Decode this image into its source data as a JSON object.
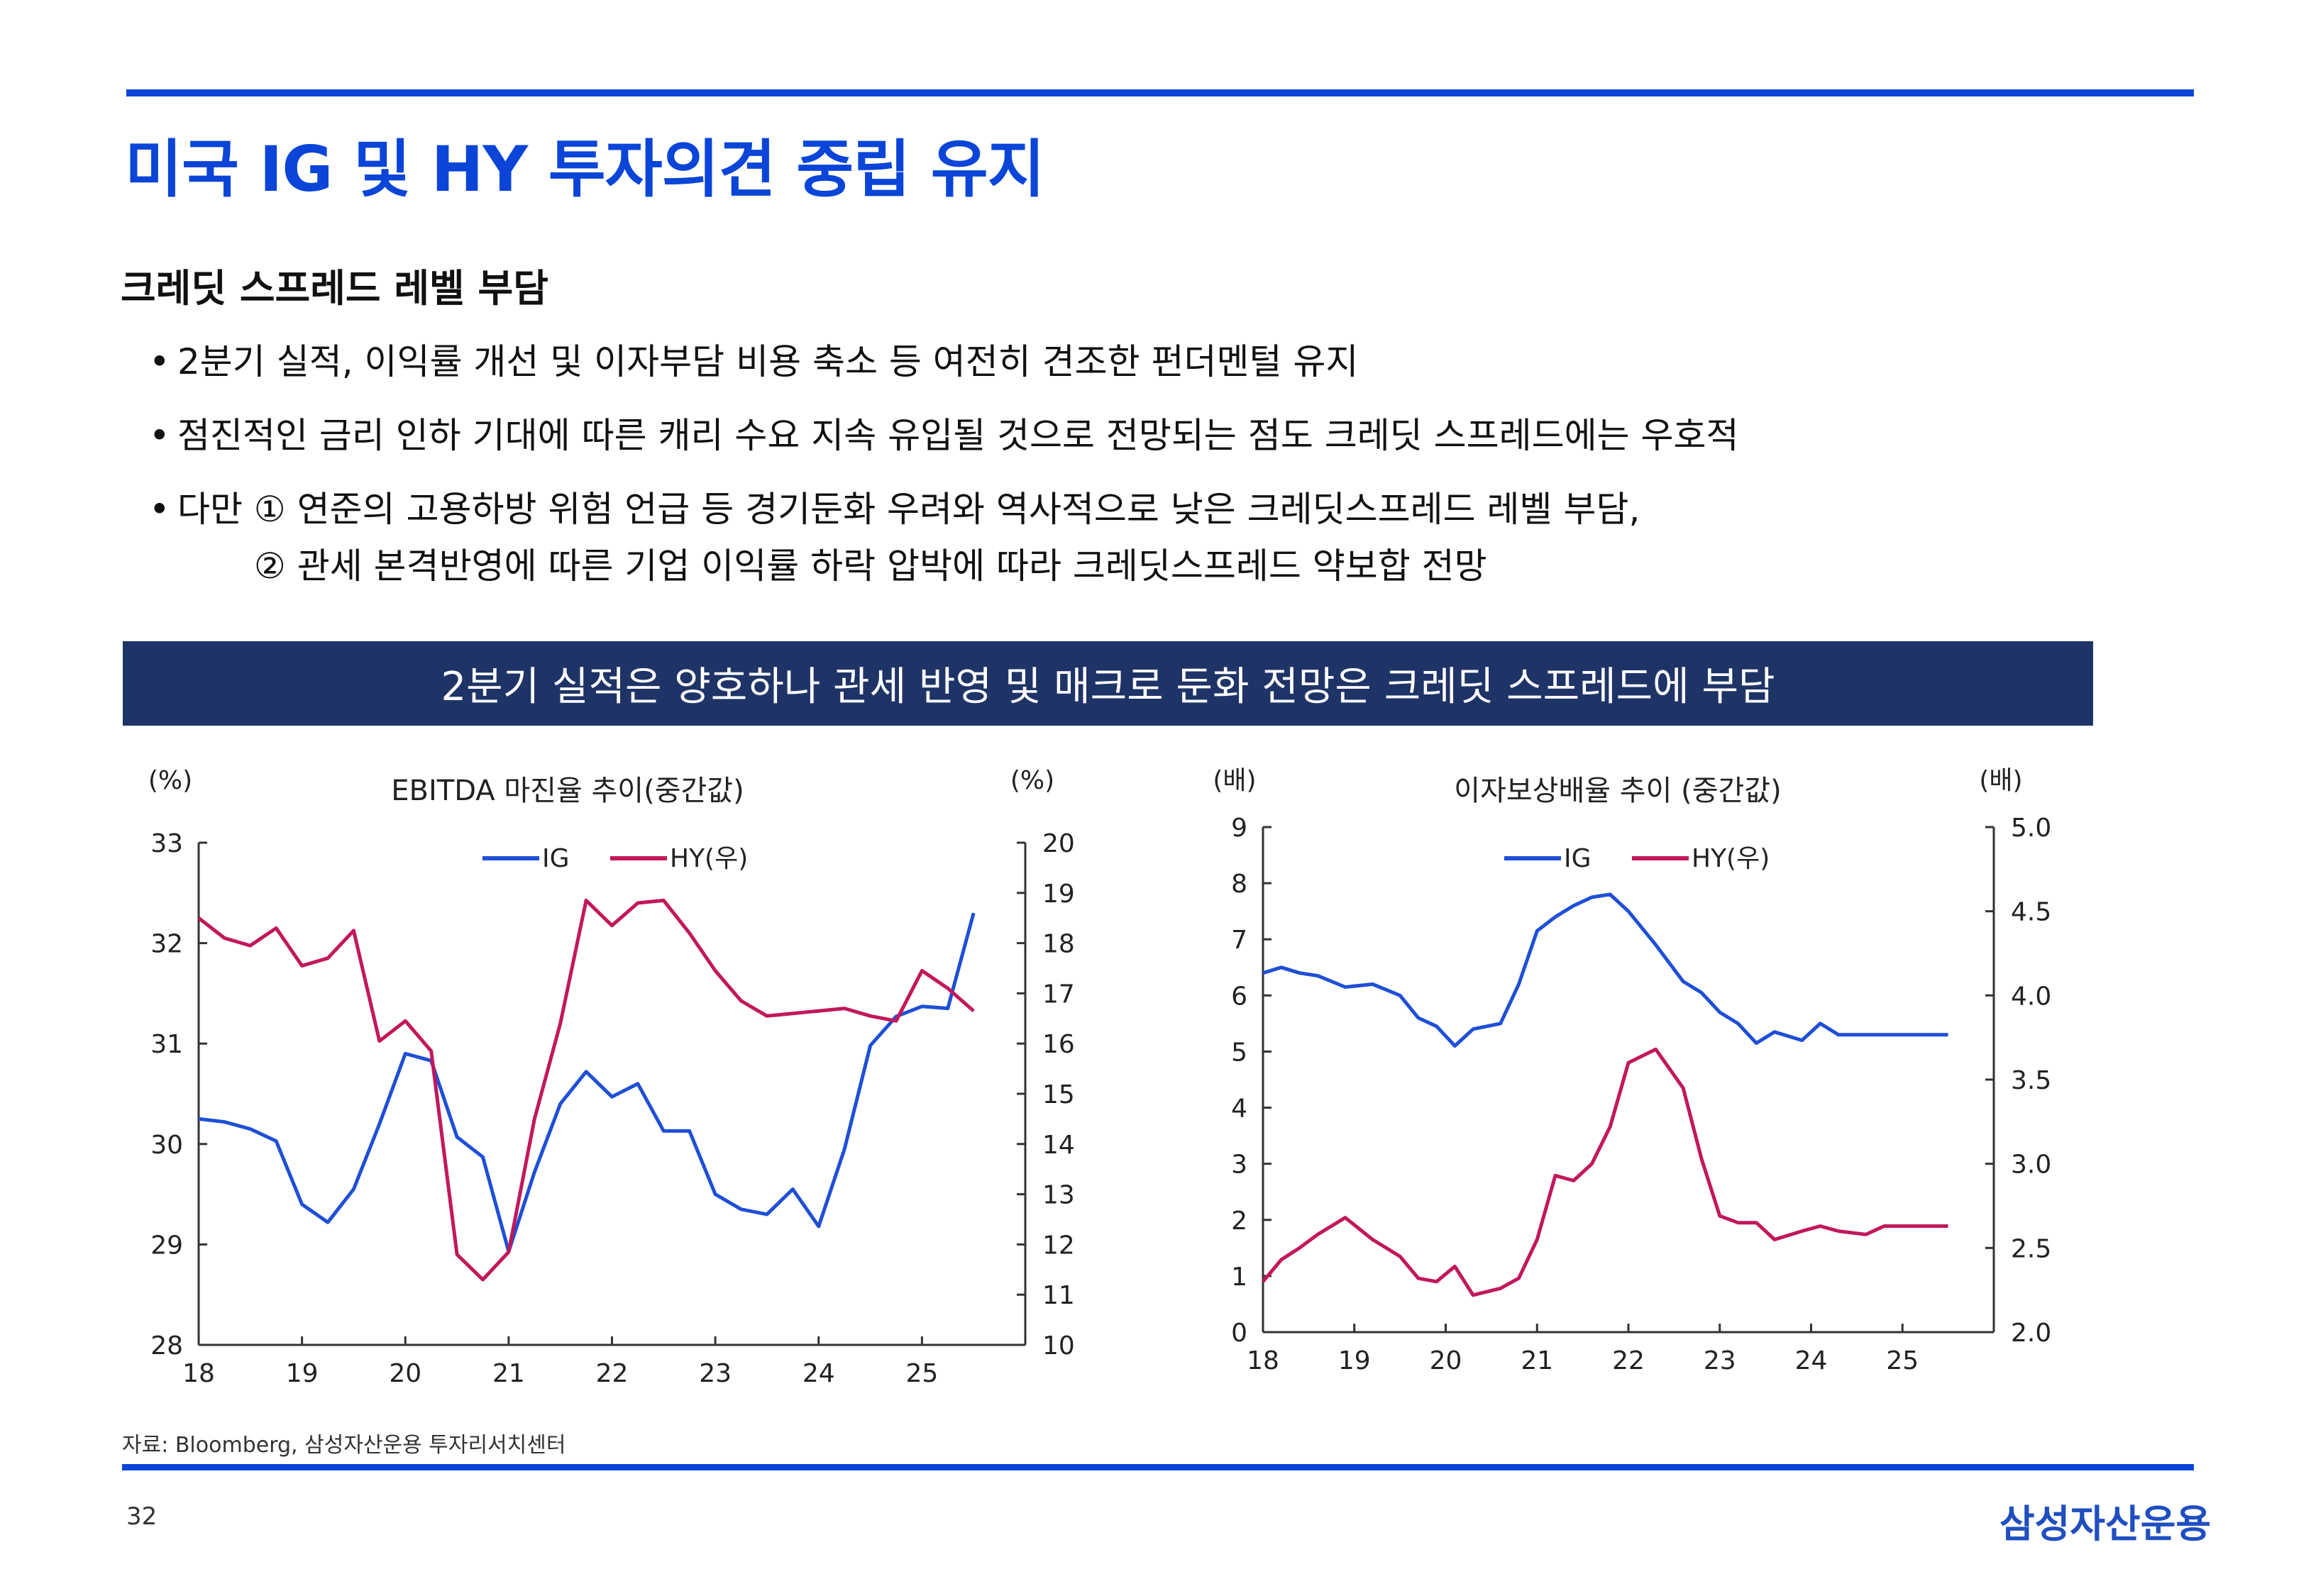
{
  "page": {
    "title": "미국 IG 및 HY 투자의견 중립 유지",
    "subtitle": "크레딧 스프레드 레벨 부담",
    "bullets": [
      "2분기 실적, 이익률 개선 및 이자부담 비용 축소 등 여전히 견조한 펀더멘털 유지",
      "점진적인 금리 인하 기대에 따른 캐리 수요 지속 유입될 것으로 전망되는 점도 크레딧 스프레드에는 우호적",
      "다만 ① 연준의 고용하방 위험 언급 등 경기둔화 우려와 역사적으로 낮은 크레딧스프레드 레벨 부담,"
    ],
    "bullet_continuation": "② 관세 본격반영에 따른 기업 이익률 하락 압박에 따라 크레딧스프레드 약보합 전망",
    "bullet_symbol": "•",
    "banner": "2분기 실적은 양호하나 관세 반영 및 매크로 둔화 전망은 크레딧 스프레드에 부담",
    "source": "자료: Bloomberg, 삼성자산운용 투자리서치센터",
    "page_number": "32",
    "logo": "삼성자산운용"
  },
  "colors": {
    "accent": "#0a45d8",
    "banner_bg": "#1f3466",
    "ig": "#1f4fd6",
    "hy": "#c2185b"
  },
  "chart_data": [
    {
      "type": "line",
      "title": "EBITDA 마진율 추이(중간값)",
      "ylabel_left": "(%)",
      "ylabel_right": "(%)",
      "x_ticks": [
        "18",
        "19",
        "20",
        "21",
        "22",
        "23",
        "24",
        "25"
      ],
      "x_range": [
        2018,
        2026
      ],
      "y_left_range": [
        28,
        33
      ],
      "y_left_ticks": [
        28,
        29,
        30,
        31,
        32,
        33
      ],
      "y_right_range": [
        10,
        20
      ],
      "y_right_ticks": [
        10,
        11,
        12,
        13,
        14,
        15,
        16,
        17,
        18,
        19,
        20
      ],
      "legend": [
        "IG",
        "HY(우)"
      ],
      "series": [
        {
          "name": "IG",
          "axis": "left",
          "x": [
            2018.0,
            2018.25,
            2018.5,
            2018.75,
            2019.0,
            2019.25,
            2019.5,
            2019.75,
            2020.0,
            2020.25,
            2020.5,
            2020.75,
            2021.0,
            2021.25,
            2021.5,
            2021.75,
            2022.0,
            2022.25,
            2022.5,
            2022.75,
            2023.0,
            2023.25,
            2023.5,
            2023.75,
            2024.0,
            2024.25,
            2024.5,
            2024.75,
            2025.0,
            2025.25,
            2025.5
          ],
          "values": [
            30.25,
            30.22,
            30.15,
            30.03,
            29.4,
            29.22,
            29.55,
            30.2,
            30.9,
            30.83,
            30.07,
            29.87,
            28.93,
            29.72,
            30.4,
            30.72,
            30.47,
            30.6,
            30.13,
            30.13,
            29.5,
            29.35,
            29.3,
            29.55,
            29.18,
            29.95,
            30.98,
            31.27,
            31.37,
            31.35,
            32.3
          ]
        },
        {
          "name": "HY(우)",
          "axis": "right",
          "x": [
            2018.0,
            2018.25,
            2018.5,
            2018.75,
            2019.0,
            2019.25,
            2019.5,
            2019.75,
            2020.0,
            2020.25,
            2020.5,
            2020.75,
            2021.0,
            2021.25,
            2021.5,
            2021.75,
            2022.0,
            2022.25,
            2022.5,
            2022.75,
            2023.0,
            2023.25,
            2023.5,
            2023.75,
            2024.0,
            2024.25,
            2024.5,
            2024.75,
            2025.0,
            2025.25,
            2025.5
          ],
          "values": [
            18.5,
            18.1,
            17.95,
            18.3,
            17.55,
            17.7,
            18.25,
            16.05,
            16.45,
            15.85,
            11.8,
            11.3,
            11.85,
            14.5,
            16.4,
            18.85,
            18.35,
            18.8,
            18.85,
            18.2,
            17.45,
            16.85,
            16.55,
            16.6,
            16.65,
            16.7,
            16.55,
            16.45,
            17.45,
            17.1,
            16.65
          ]
        }
      ]
    },
    {
      "type": "line",
      "title": "이자보상배율 추이 (중간값)",
      "ylabel_left": "(배)",
      "ylabel_right": "(배)",
      "x_ticks": [
        "18",
        "19",
        "20",
        "21",
        "22",
        "23",
        "24",
        "25"
      ],
      "x_range": [
        2018,
        2026
      ],
      "y_left_range": [
        0,
        9
      ],
      "y_left_ticks": [
        0,
        1,
        2,
        3,
        4,
        5,
        6,
        7,
        8,
        9
      ],
      "y_right_range": [
        2.0,
        5.0
      ],
      "y_right_ticks": [
        "2.0",
        "2.5",
        "3.0",
        "3.5",
        "4.0",
        "4.5",
        "5.0"
      ],
      "legend": [
        "IG",
        "HY(우)"
      ],
      "series": [
        {
          "name": "IG",
          "axis": "left",
          "x": [
            2018.0,
            2018.2,
            2018.4,
            2018.6,
            2018.9,
            2019.2,
            2019.5,
            2019.7,
            2019.9,
            2020.1,
            2020.3,
            2020.6,
            2020.8,
            2021.0,
            2021.2,
            2021.4,
            2021.6,
            2021.8,
            2022.0,
            2022.3,
            2022.6,
            2022.8,
            2023.0,
            2023.2,
            2023.4,
            2023.6,
            2023.9,
            2024.1,
            2024.3,
            2024.6,
            2024.8,
            2025.0,
            2025.3,
            2025.5
          ],
          "values": [
            6.4,
            6.5,
            6.4,
            6.35,
            6.15,
            6.2,
            6.0,
            5.6,
            5.45,
            5.1,
            5.4,
            5.5,
            6.2,
            7.15,
            7.4,
            7.6,
            7.75,
            7.8,
            7.5,
            6.9,
            6.25,
            6.05,
            5.7,
            5.5,
            5.15,
            5.35,
            5.2,
            5.5,
            5.3,
            5.3,
            5.3,
            5.3,
            5.3,
            5.3
          ]
        },
        {
          "name": "HY(우)",
          "axis": "right",
          "x": [
            2018.0,
            2018.2,
            2018.4,
            2018.6,
            2018.9,
            2019.2,
            2019.5,
            2019.7,
            2019.9,
            2020.1,
            2020.3,
            2020.6,
            2020.8,
            2021.0,
            2021.2,
            2021.4,
            2021.6,
            2021.8,
            2022.0,
            2022.3,
            2022.6,
            2022.8,
            2023.0,
            2023.2,
            2023.4,
            2023.6,
            2023.9,
            2024.1,
            2024.3,
            2024.6,
            2024.8,
            2025.0,
            2025.3,
            2025.5
          ],
          "values": [
            2.3,
            2.43,
            2.5,
            2.58,
            2.68,
            2.55,
            2.45,
            2.32,
            2.3,
            2.39,
            2.22,
            2.26,
            2.32,
            2.55,
            2.93,
            2.9,
            3.0,
            3.22,
            3.6,
            3.68,
            3.45,
            3.03,
            2.69,
            2.65,
            2.65,
            2.55,
            2.6,
            2.63,
            2.6,
            2.58,
            2.63,
            2.63,
            2.63,
            2.63
          ]
        }
      ]
    }
  ]
}
